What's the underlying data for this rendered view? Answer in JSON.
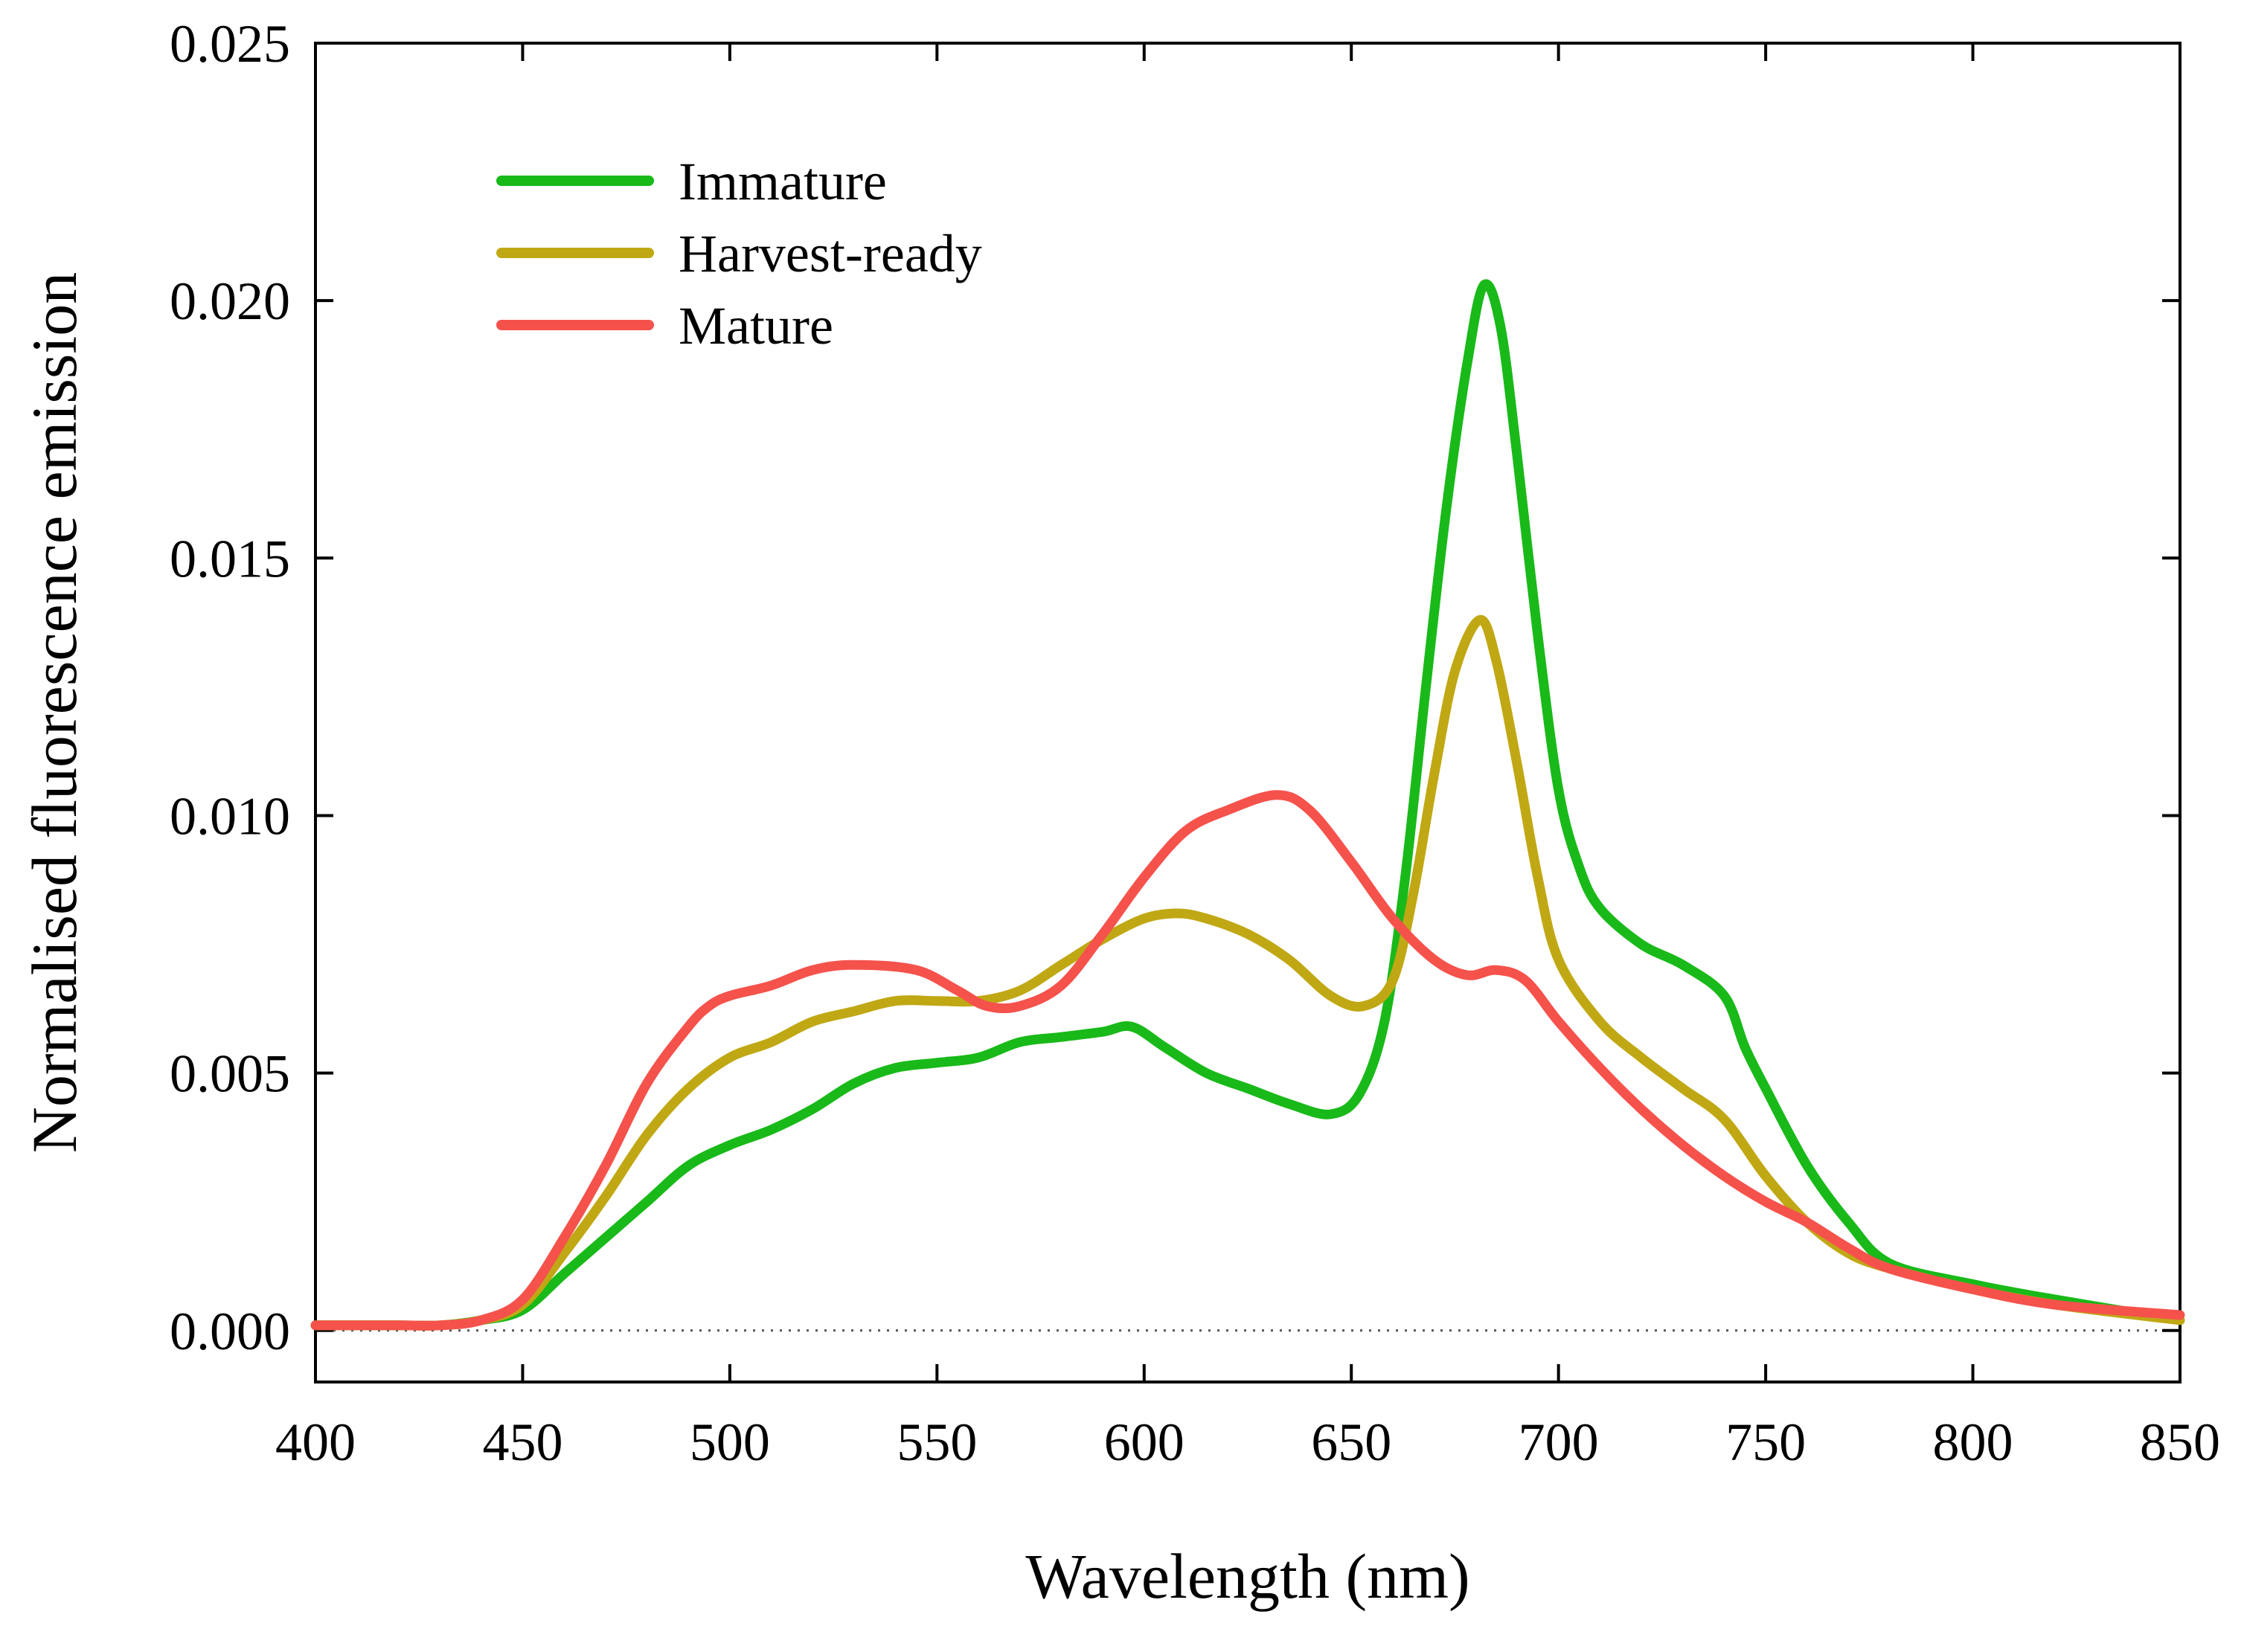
{
  "chart_data": {
    "type": "line",
    "title": "",
    "xlabel": "Wavelength (nm)",
    "ylabel": "Normalised fluorescence emission",
    "xlim": [
      400,
      850
    ],
    "ylim": [
      -0.001,
      0.025
    ],
    "x_ticks": [
      400,
      450,
      500,
      550,
      600,
      650,
      700,
      750,
      800,
      850
    ],
    "x_tick_labels": [
      "400",
      "450",
      "500",
      "550",
      "600",
      "650",
      "700",
      "750",
      "800",
      "850"
    ],
    "y_ticks": [
      0.0,
      0.005,
      0.01,
      0.015,
      0.02,
      0.025
    ],
    "y_tick_labels": [
      "0.000",
      "0.005",
      "0.010",
      "0.015",
      "0.020",
      "0.025"
    ],
    "zero_line": "dotted",
    "legend_position": "top-left",
    "series": [
      {
        "name": "Immature",
        "color": "#19b919",
        "x": [
          400,
          420,
          430,
          440,
          450,
          460,
          470,
          480,
          490,
          500,
          510,
          520,
          530,
          540,
          550,
          560,
          570,
          580,
          590,
          597,
          605,
          615,
          625,
          635,
          645,
          652,
          658,
          663,
          668,
          673,
          678,
          682,
          686,
          690,
          695,
          700,
          705,
          710,
          720,
          730,
          740,
          745,
          750,
          760,
          770,
          780,
          800,
          820,
          850
        ],
        "y": [
          0.0001,
          0.0001,
          0.0001,
          0.0002,
          0.0004,
          0.0011,
          0.0018,
          0.0025,
          0.0032,
          0.0036,
          0.0039,
          0.0043,
          0.0048,
          0.0051,
          0.0052,
          0.0053,
          0.0056,
          0.0057,
          0.0058,
          0.0059,
          0.0055,
          0.005,
          0.0047,
          0.0044,
          0.0042,
          0.0046,
          0.006,
          0.0088,
          0.0125,
          0.016,
          0.0188,
          0.0203,
          0.0195,
          0.017,
          0.0135,
          0.0105,
          0.009,
          0.0082,
          0.0075,
          0.0071,
          0.0065,
          0.0055,
          0.0047,
          0.0032,
          0.0021,
          0.0013,
          0.0009,
          0.0006,
          0.0002
        ]
      },
      {
        "name": "Harvest-ready",
        "color": "#c0a814",
        "x": [
          400,
          420,
          430,
          440,
          450,
          460,
          470,
          480,
          490,
          500,
          510,
          520,
          530,
          540,
          550,
          560,
          570,
          580,
          590,
          600,
          608,
          615,
          625,
          635,
          645,
          653,
          660,
          665,
          670,
          675,
          681,
          685,
          690,
          695,
          700,
          710,
          720,
          730,
          740,
          750,
          760,
          770,
          780,
          800,
          820,
          850
        ],
        "y": [
          0.0001,
          0.0001,
          0.0001,
          0.0002,
          0.0005,
          0.0015,
          0.0026,
          0.0038,
          0.0047,
          0.0053,
          0.0056,
          0.006,
          0.0062,
          0.0064,
          0.0064,
          0.0064,
          0.0066,
          0.0071,
          0.0076,
          0.008,
          0.0081,
          0.008,
          0.0077,
          0.0072,
          0.0065,
          0.0063,
          0.0068,
          0.0085,
          0.0108,
          0.0128,
          0.0138,
          0.013,
          0.011,
          0.0088,
          0.0072,
          0.006,
          0.0053,
          0.0047,
          0.0041,
          0.003,
          0.0021,
          0.0015,
          0.0012,
          0.0008,
          0.0005,
          0.0002
        ]
      },
      {
        "name": "Mature",
        "color": "#f5524c",
        "x": [
          400,
          420,
          430,
          440,
          450,
          460,
          470,
          480,
          490,
          495,
          500,
          510,
          520,
          530,
          545,
          555,
          562,
          570,
          580,
          590,
          600,
          610,
          620,
          632,
          640,
          650,
          660,
          670,
          678,
          685,
          692,
          700,
          710,
          720,
          730,
          740,
          750,
          760,
          770,
          780,
          800,
          820,
          850
        ],
        "y": [
          0.0001,
          0.0001,
          0.0001,
          0.0002,
          0.0006,
          0.0018,
          0.0032,
          0.0048,
          0.0059,
          0.0063,
          0.0065,
          0.0067,
          0.007,
          0.0071,
          0.007,
          0.0066,
          0.0063,
          0.0063,
          0.0067,
          0.0077,
          0.0088,
          0.0097,
          0.0101,
          0.0104,
          0.0101,
          0.0091,
          0.008,
          0.0072,
          0.0069,
          0.007,
          0.0068,
          0.006,
          0.0051,
          0.0043,
          0.0036,
          0.003,
          0.0025,
          0.0021,
          0.0016,
          0.0012,
          0.0008,
          0.0005,
          0.0003
        ]
      }
    ]
  }
}
